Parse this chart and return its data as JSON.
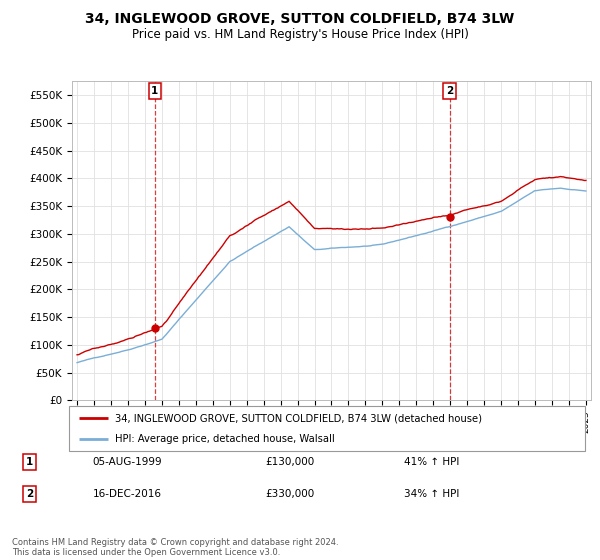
{
  "title": "34, INGLEWOOD GROVE, SUTTON COLDFIELD, B74 3LW",
  "subtitle": "Price paid vs. HM Land Registry's House Price Index (HPI)",
  "ylim": [
    0,
    575000
  ],
  "yticks": [
    0,
    50000,
    100000,
    150000,
    200000,
    250000,
    300000,
    350000,
    400000,
    450000,
    500000,
    550000
  ],
  "ytick_labels": [
    "£0",
    "£50K",
    "£100K",
    "£150K",
    "£200K",
    "£250K",
    "£300K",
    "£350K",
    "£400K",
    "£450K",
    "£500K",
    "£550K"
  ],
  "xlim_left": 1994.7,
  "xlim_right": 2025.3,
  "sale1_date": 1999.58,
  "sale1_price": 130000,
  "sale1_label": "1",
  "sale2_date": 2016.96,
  "sale2_price": 330000,
  "sale2_label": "2",
  "legend_line1": "34, INGLEWOOD GROVE, SUTTON COLDFIELD, B74 3LW (detached house)",
  "legend_line2": "HPI: Average price, detached house, Walsall",
  "table_rows": [
    {
      "num": "1",
      "date": "05-AUG-1999",
      "price": "£130,000",
      "hpi": "41% ↑ HPI"
    },
    {
      "num": "2",
      "date": "16-DEC-2016",
      "price": "£330,000",
      "hpi": "34% ↑ HPI"
    }
  ],
  "footer": "Contains HM Land Registry data © Crown copyright and database right 2024.\nThis data is licensed under the Open Government Licence v3.0.",
  "property_color": "#cc0000",
  "hpi_color": "#7aaed6",
  "vline_color": "#cc0000",
  "background_color": "#ffffff",
  "grid_color": "#e0e0e0",
  "title_fontsize": 10,
  "subtitle_fontsize": 8.5
}
